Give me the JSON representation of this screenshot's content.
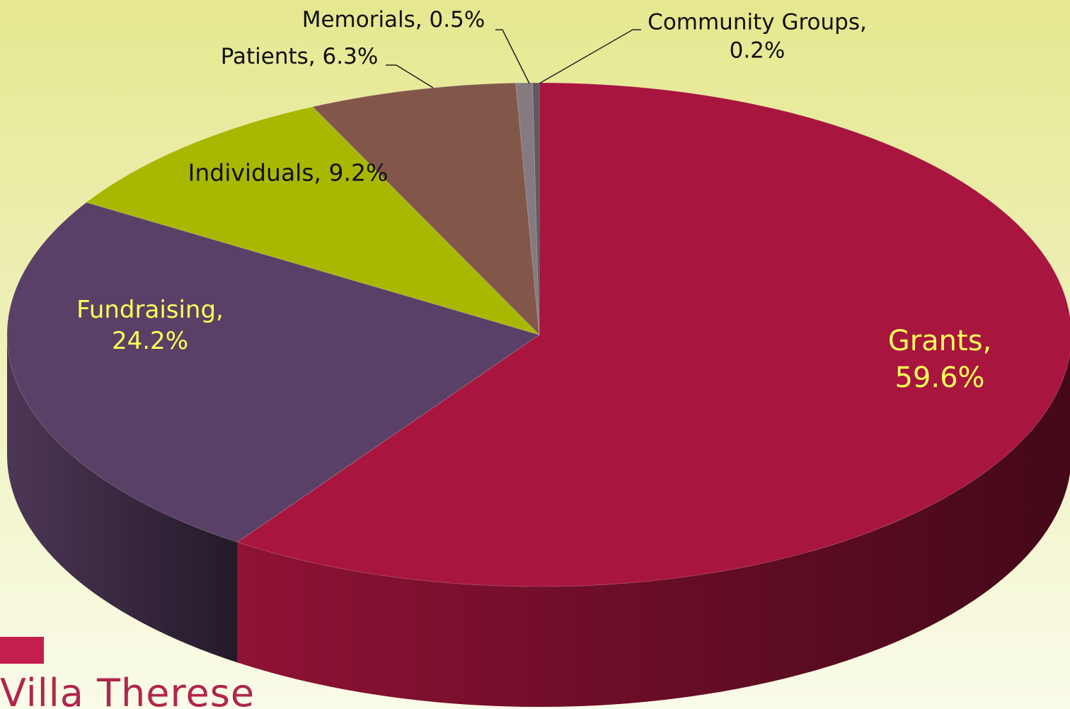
{
  "chart_data": {
    "type": "pie",
    "categories": [
      "Grants",
      "Fundraising",
      "Individuals",
      "Patients",
      "Memorials",
      "Community Groups"
    ],
    "values": [
      59.6,
      24.2,
      9.2,
      6.3,
      0.5,
      0.2
    ],
    "value_labels": [
      "Grants, 59.6%",
      "Fundraising, 24.2%",
      "Individuals, 9.2%",
      "Patients, 6.3%",
      "Memorials, 0.5%",
      "Community Groups, 0.2%"
    ],
    "colors": [
      "#a8153e",
      "#5a4066",
      "#a8b800",
      "#82574a",
      "#857a80",
      "#5e5a60"
    ]
  },
  "logo": "Villa Therese"
}
